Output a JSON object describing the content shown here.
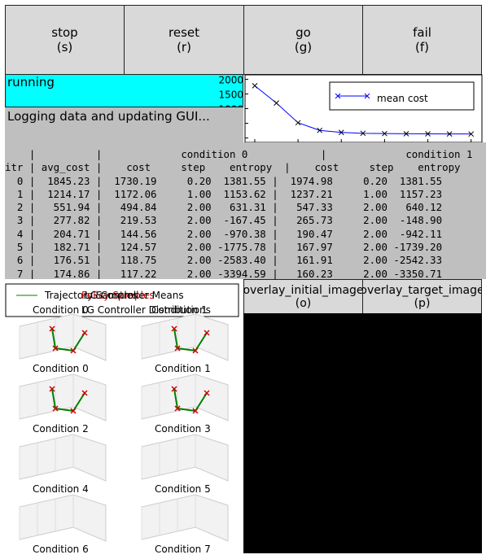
{
  "buttons": [
    {
      "label": "stop",
      "key": "(s)"
    },
    {
      "label": "reset",
      "key": "(r)"
    },
    {
      "label": "go",
      "key": "(g)"
    },
    {
      "label": "fail",
      "key": "(f)"
    }
  ],
  "status": "running",
  "message": "Logging data and updating GUI...",
  "chart_data": {
    "type": "line",
    "x": [
      0,
      1,
      2,
      3,
      4,
      5,
      6,
      7,
      8,
      9,
      10
    ],
    "series": [
      {
        "name": "mean cost",
        "color": "#0000ff",
        "values": [
          1780,
          1190,
          520,
          260,
          190,
          160,
          150,
          145,
          140,
          138,
          136
        ]
      }
    ],
    "xlim": [
      -0.45,
      10.5
    ],
    "ylim": [
      -150,
      2150
    ],
    "xticks": [
      0,
      2,
      4,
      6,
      8,
      10
    ],
    "yticks": [
      0,
      500,
      1000,
      1500,
      2000
    ],
    "legend": "upper right"
  },
  "log": {
    "header": [
      "    |          |             condition 0            |             condition 1",
      "itr | avg_cost |    cost     step    entropy  |    cost     step    entropy"
    ],
    "rows": [
      "  0 |  1845.23 |  1730.19     0.20  1381.55 |  1974.98     0.20  1381.55",
      "  1 |  1214.17 |  1172.06     1.00  1153.62 |  1237.21     1.00  1157.23",
      "  2 |   551.94 |   494.84     2.00   631.31 |   547.33     2.00   640.12",
      "  3 |   277.82 |   219.53     2.00  -167.45 |   265.73     2.00  -148.90",
      "  4 |   204.71 |   144.56     2.00  -970.38 |   190.47     2.00  -942.11",
      "  5 |   182.71 |   124.57     2.00 -1775.78 |   167.97     2.00 -1739.20",
      "  6 |   176.51 |   118.75     2.00 -2583.40 |   161.91     2.00 -2542.33",
      "  7 |   174.86 |   117.22     2.00 -3394.59 |   160.23     2.00 -3350.71"
    ]
  },
  "legend": [
    "Trajectory Samples",
    "Policy Samples",
    "LG Controller Means",
    "LG Controller Distributions",
    "Condition 0",
    "Condition 1"
  ],
  "subplots": [
    "Condition 0",
    "Condition 1",
    "Condition 2",
    "Condition 3",
    "Condition 4",
    "Condition 5",
    "Condition 6",
    "Condition 7"
  ],
  "image_buttons": [
    {
      "label": "overlay_initial_image",
      "key": "(o)"
    },
    {
      "label": "overlay_target_image",
      "key": "(p)"
    }
  ]
}
